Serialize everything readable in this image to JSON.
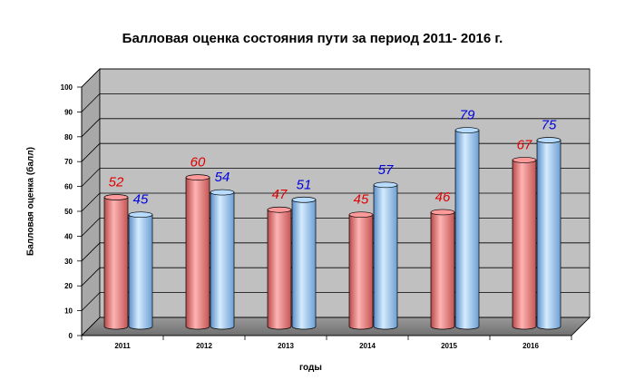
{
  "chart_data": {
    "type": "bar",
    "title": "Балловая оценка состояния пути  за период  2011- 2016 г.",
    "xlabel": "годы",
    "ylabel": "Балловая оценка (балл)",
    "categories": [
      "2011",
      "2012",
      "2013",
      "2014",
      "2015",
      "2016"
    ],
    "series": [
      {
        "values": [
          52,
          60,
          47,
          45,
          46,
          67
        ],
        "color": "#ff7f80",
        "label_color": "#e00000"
      },
      {
        "values": [
          45,
          54,
          51,
          57,
          79,
          75
        ],
        "color": "#99ccff",
        "label_color": "#0000e0"
      }
    ],
    "ylim": [
      0,
      100
    ],
    "yticks": [
      "0",
      "10",
      "20",
      "30",
      "40",
      "50",
      "60",
      "70",
      "80",
      "90",
      "100"
    ],
    "grid": true,
    "style": "3d-cylinder",
    "wall_color": "#c0c0c0"
  }
}
